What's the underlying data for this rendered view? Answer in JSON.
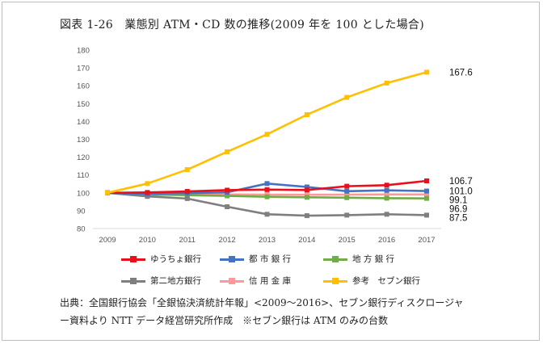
{
  "chart_data": {
    "type": "line",
    "title": "図表 1-26　業態別 ATM・CD 数の推移(2009 年を 100 とした場合)",
    "x": [
      "2009",
      "2010",
      "2011",
      "2012",
      "2013",
      "2014",
      "2015",
      "2016",
      "2017"
    ],
    "ylim": [
      80,
      180
    ],
    "yticks": [
      80,
      90,
      100,
      110,
      120,
      130,
      140,
      150,
      160,
      170,
      180
    ],
    "grid": false,
    "legend_position": "bottom",
    "series": [
      {
        "name": "ゆうちょ銀行",
        "color": "#e8101a",
        "values": [
          100,
          100.2,
          100.8,
          101.5,
          101.8,
          101.6,
          103.7,
          104.3,
          106.7
        ]
      },
      {
        "name": "都 市 銀 行",
        "color": "#4472c4",
        "values": [
          100,
          99.5,
          99.8,
          100.3,
          105.2,
          103.3,
          100.9,
          101.4,
          101.0
        ]
      },
      {
        "name": "地 方 銀 行",
        "color": "#70ad47",
        "values": [
          100,
          99.0,
          98.7,
          98.3,
          97.8,
          97.5,
          97.3,
          97.0,
          96.9
        ]
      },
      {
        "name": "第二地方銀行",
        "color": "#7f7f7f",
        "values": [
          100,
          98.0,
          96.8,
          92.2,
          88.0,
          87.2,
          87.5,
          88.0,
          87.5
        ]
      },
      {
        "name": "信 用 金 庫",
        "color": "#ff9999",
        "values": [
          100,
          99.6,
          99.3,
          99.1,
          99.0,
          98.9,
          99.0,
          99.1,
          99.1
        ]
      },
      {
        "name": "参考　セブン銀行",
        "color": "#ffc000",
        "values": [
          100,
          105.2,
          113.0,
          123.0,
          132.8,
          143.8,
          153.5,
          161.5,
          167.6
        ]
      }
    ],
    "end_labels": [
      {
        "text": "167.6",
        "value": 167.6
      },
      {
        "text": "106.7",
        "value": 106.7
      },
      {
        "text": "101.0",
        "value": 101.0
      },
      {
        "text": "99.1",
        "value": 99.1
      },
      {
        "text": "96.9",
        "value": 96.9
      },
      {
        "text": "87.5",
        "value": 87.5
      }
    ]
  },
  "source_note": {
    "line1": "出典：全国銀行協会「全銀協決済統計年報」<2009～2016>、セブン銀行ディスクロージャ",
    "line2": "ー資料より NTT データ経営研究所作成　※セブン銀行は ATM のみの台数"
  }
}
